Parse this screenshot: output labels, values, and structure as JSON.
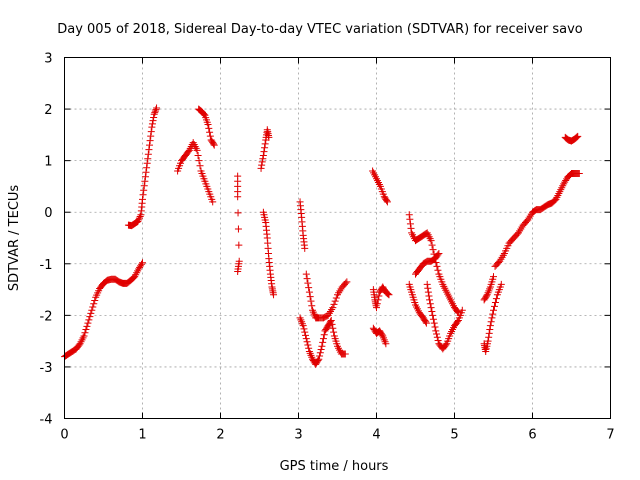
{
  "chart_data": {
    "type": "scatter",
    "title": "Day 005 of 2018, Sidereal Day-to-day VTEC variation (SDTVAR) for receiver savo",
    "xlabel": "GPS time / hours",
    "ylabel": "SDTVAR / TECUs",
    "xlim": [
      0,
      7
    ],
    "ylim": [
      -4,
      3
    ],
    "xticks": [
      0,
      1,
      2,
      3,
      4,
      5,
      6,
      7
    ],
    "yticks": [
      -4,
      -3,
      -2,
      -1,
      0,
      1,
      2,
      3
    ],
    "grid": true,
    "marker": "+",
    "color": "#e00000",
    "segments": [
      [
        [
          0.0,
          -2.8
        ],
        [
          0.05,
          -2.75
        ],
        [
          0.1,
          -2.7
        ],
        [
          0.15,
          -2.65
        ],
        [
          0.2,
          -2.55
        ],
        [
          0.25,
          -2.4
        ],
        [
          0.3,
          -2.15
        ],
        [
          0.35,
          -1.9
        ],
        [
          0.4,
          -1.65
        ],
        [
          0.45,
          -1.48
        ],
        [
          0.5,
          -1.38
        ],
        [
          0.55,
          -1.32
        ],
        [
          0.6,
          -1.3
        ],
        [
          0.65,
          -1.3
        ],
        [
          0.7,
          -1.35
        ],
        [
          0.75,
          -1.38
        ],
        [
          0.8,
          -1.38
        ],
        [
          0.85,
          -1.32
        ],
        [
          0.9,
          -1.25
        ],
        [
          0.95,
          -1.1
        ],
        [
          1.0,
          -0.98
        ]
      ],
      [
        [
          0.82,
          -0.25
        ],
        [
          0.86,
          -0.26
        ],
        [
          0.9,
          -0.22
        ],
        [
          0.94,
          -0.18
        ],
        [
          0.98,
          -0.05
        ],
        [
          1.0,
          0.25
        ],
        [
          1.03,
          0.6
        ],
        [
          1.06,
          0.95
        ],
        [
          1.09,
          1.3
        ],
        [
          1.12,
          1.65
        ],
        [
          1.15,
          1.9
        ],
        [
          1.18,
          2.02
        ]
      ],
      [
        [
          1.45,
          0.8
        ],
        [
          1.5,
          1.0
        ],
        [
          1.55,
          1.1
        ],
        [
          1.6,
          1.2
        ],
        [
          1.65,
          1.35
        ],
        [
          1.7,
          1.2
        ],
        [
          1.75,
          0.8
        ],
        [
          1.8,
          0.6
        ],
        [
          1.85,
          0.4
        ],
        [
          1.9,
          0.2
        ]
      ],
      [
        [
          1.72,
          2.0
        ],
        [
          1.76,
          1.95
        ],
        [
          1.8,
          1.88
        ],
        [
          1.84,
          1.7
        ],
        [
          1.88,
          1.4
        ],
        [
          1.92,
          1.3
        ]
      ],
      [
        [
          2.22,
          0.7
        ],
        [
          2.22,
          0.3
        ],
        [
          2.24,
          -0.95
        ],
        [
          2.22,
          -1.15
        ]
      ],
      [
        [
          2.52,
          0.85
        ],
        [
          2.55,
          1.1
        ],
        [
          2.58,
          1.4
        ],
        [
          2.6,
          1.6
        ],
        [
          2.62,
          1.45
        ]
      ],
      [
        [
          2.55,
          0.0
        ],
        [
          2.58,
          -0.2
        ],
        [
          2.6,
          -0.5
        ],
        [
          2.62,
          -0.9
        ],
        [
          2.64,
          -1.2
        ],
        [
          2.66,
          -1.45
        ],
        [
          2.68,
          -1.6
        ]
      ],
      [
        [
          3.02,
          0.2
        ],
        [
          3.04,
          -0.1
        ],
        [
          3.06,
          -0.45
        ],
        [
          3.08,
          -0.7
        ]
      ],
      [
        [
          3.02,
          -2.05
        ],
        [
          3.06,
          -2.2
        ],
        [
          3.1,
          -2.45
        ],
        [
          3.14,
          -2.7
        ],
        [
          3.18,
          -2.85
        ],
        [
          3.22,
          -2.95
        ],
        [
          3.26,
          -2.85
        ],
        [
          3.3,
          -2.6
        ],
        [
          3.34,
          -2.3
        ],
        [
          3.38,
          -2.2
        ],
        [
          3.42,
          -2.1
        ],
        [
          3.46,
          -2.4
        ],
        [
          3.5,
          -2.6
        ],
        [
          3.55,
          -2.75
        ],
        [
          3.6,
          -2.75
        ]
      ],
      [
        [
          3.1,
          -1.2
        ],
        [
          3.14,
          -1.55
        ],
        [
          3.18,
          -1.9
        ],
        [
          3.22,
          -2.05
        ],
        [
          3.26,
          -2.05
        ],
        [
          3.32,
          -2.05
        ],
        [
          3.38,
          -2.0
        ],
        [
          3.44,
          -1.85
        ],
        [
          3.5,
          -1.6
        ],
        [
          3.56,
          -1.45
        ],
        [
          3.62,
          -1.35
        ]
      ],
      [
        [
          3.95,
          0.8
        ],
        [
          4.0,
          0.65
        ],
        [
          4.05,
          0.5
        ],
        [
          4.1,
          0.3
        ],
        [
          4.14,
          0.2
        ]
      ],
      [
        [
          3.96,
          -1.5
        ],
        [
          3.98,
          -1.7
        ],
        [
          4.0,
          -1.85
        ],
        [
          4.04,
          -1.55
        ],
        [
          4.08,
          -1.45
        ],
        [
          4.12,
          -1.55
        ],
        [
          4.16,
          -1.6
        ]
      ],
      [
        [
          3.96,
          -2.25
        ],
        [
          4.0,
          -2.35
        ],
        [
          4.04,
          -2.3
        ],
        [
          4.08,
          -2.4
        ],
        [
          4.12,
          -2.55
        ]
      ],
      [
        [
          4.42,
          -0.05
        ],
        [
          4.45,
          -0.4
        ],
        [
          4.5,
          -0.55
        ],
        [
          4.55,
          -0.5
        ],
        [
          4.6,
          -0.45
        ],
        [
          4.65,
          -0.4
        ],
        [
          4.7,
          -0.55
        ],
        [
          4.75,
          -0.9
        ],
        [
          4.8,
          -1.2
        ],
        [
          4.85,
          -1.4
        ],
        [
          4.9,
          -1.55
        ],
        [
          4.95,
          -1.7
        ],
        [
          5.0,
          -1.85
        ],
        [
          5.05,
          -1.95
        ]
      ],
      [
        [
          4.42,
          -1.4
        ],
        [
          4.46,
          -1.6
        ],
        [
          4.5,
          -1.8
        ],
        [
          4.55,
          -1.95
        ],
        [
          4.6,
          -2.05
        ],
        [
          4.64,
          -2.15
        ]
      ],
      [
        [
          4.5,
          -1.2
        ],
        [
          4.55,
          -1.1
        ],
        [
          4.6,
          -1.0
        ],
        [
          4.65,
          -0.95
        ],
        [
          4.7,
          -0.95
        ],
        [
          4.75,
          -0.9
        ],
        [
          4.8,
          -0.8
        ]
      ],
      [
        [
          4.65,
          -1.4
        ],
        [
          4.68,
          -1.7
        ],
        [
          4.72,
          -2.0
        ],
        [
          4.76,
          -2.3
        ],
        [
          4.8,
          -2.55
        ],
        [
          4.85,
          -2.65
        ],
        [
          4.9,
          -2.55
        ],
        [
          4.95,
          -2.35
        ],
        [
          5.0,
          -2.2
        ],
        [
          5.05,
          -2.1
        ],
        [
          5.1,
          -1.9
        ]
      ],
      [
        [
          5.38,
          -2.55
        ],
        [
          5.4,
          -2.7
        ],
        [
          5.43,
          -2.5
        ],
        [
          5.46,
          -2.2
        ],
        [
          5.5,
          -1.9
        ],
        [
          5.55,
          -1.6
        ],
        [
          5.6,
          -1.4
        ]
      ],
      [
        [
          5.38,
          -1.7
        ],
        [
          5.42,
          -1.6
        ],
        [
          5.46,
          -1.45
        ],
        [
          5.5,
          -1.25
        ]
      ],
      [
        [
          5.52,
          -1.05
        ],
        [
          5.58,
          -0.95
        ],
        [
          5.64,
          -0.8
        ],
        [
          5.7,
          -0.6
        ],
        [
          5.76,
          -0.5
        ],
        [
          5.82,
          -0.4
        ],
        [
          5.88,
          -0.25
        ],
        [
          5.94,
          -0.15
        ],
        [
          6.0,
          0.0
        ],
        [
          6.05,
          0.05
        ],
        [
          6.1,
          0.05
        ],
        [
          6.15,
          0.1
        ],
        [
          6.2,
          0.15
        ],
        [
          6.25,
          0.18
        ],
        [
          6.3,
          0.25
        ],
        [
          6.35,
          0.4
        ],
        [
          6.4,
          0.55
        ],
        [
          6.45,
          0.68
        ],
        [
          6.5,
          0.75
        ],
        [
          6.55,
          0.75
        ],
        [
          6.6,
          0.75
        ]
      ],
      [
        [
          6.42,
          1.45
        ],
        [
          6.46,
          1.4
        ],
        [
          6.5,
          1.38
        ],
        [
          6.54,
          1.42
        ],
        [
          6.58,
          1.47
        ]
      ]
    ]
  }
}
